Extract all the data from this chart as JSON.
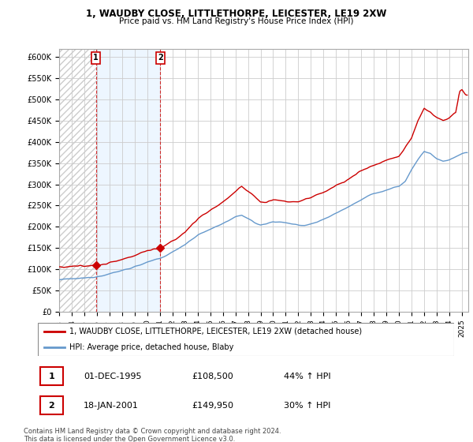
{
  "title1": "1, WAUDBY CLOSE, LITTLETHORPE, LEICESTER, LE19 2XW",
  "title2": "Price paid vs. HM Land Registry's House Price Index (HPI)",
  "ylabel_ticks": [
    "£0",
    "£50K",
    "£100K",
    "£150K",
    "£200K",
    "£250K",
    "£300K",
    "£350K",
    "£400K",
    "£450K",
    "£500K",
    "£550K",
    "£600K"
  ],
  "ytick_values": [
    0,
    50000,
    100000,
    150000,
    200000,
    250000,
    300000,
    350000,
    400000,
    450000,
    500000,
    550000,
    600000
  ],
  "xlim_start": 1993.0,
  "xlim_end": 2025.5,
  "ylim_min": 0,
  "ylim_max": 620000,
  "legend_label1": "1, WAUDBY CLOSE, LITTLETHORPE, LEICESTER, LE19 2XW (detached house)",
  "legend_label2": "HPI: Average price, detached house, Blaby",
  "sale1_label": "1",
  "sale1_date": "01-DEC-1995",
  "sale1_price": "£108,500",
  "sale1_hpi": "44% ↑ HPI",
  "sale2_label": "2",
  "sale2_date": "18-JAN-2001",
  "sale2_price": "£149,950",
  "sale2_hpi": "30% ↑ HPI",
  "footnote": "Contains HM Land Registry data © Crown copyright and database right 2024.\nThis data is licensed under the Open Government Licence v3.0.",
  "property_color": "#cc0000",
  "hpi_color": "#6699cc",
  "background_color": "#ffffff",
  "grid_color": "#cccccc",
  "hatch_color": "#dddddd",
  "annotation_color": "#cc0000",
  "shade_color": "#ddeeff",
  "sale1_year": 1995.92,
  "sale2_year": 2001.04,
  "sale1_price_val": 108500,
  "sale2_price_val": 149950
}
